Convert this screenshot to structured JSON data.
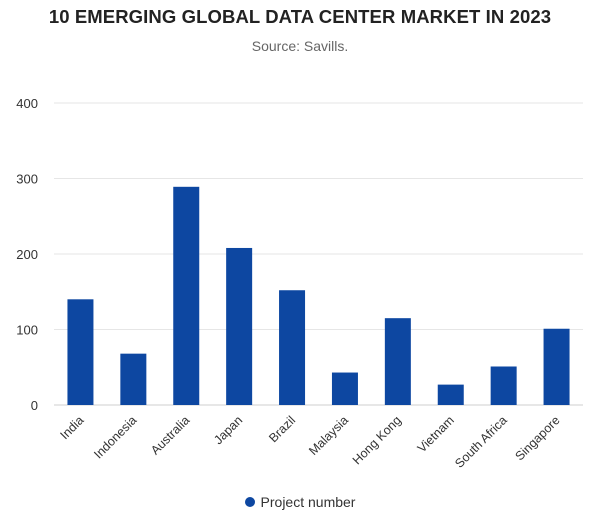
{
  "chart_data": {
    "type": "bar",
    "title": "10 EMERGING GLOBAL DATA CENTER MARKET IN 2023",
    "subtitle": "Source: Savills.",
    "xlabel": "",
    "ylabel": "",
    "ylim": [
      0,
      400
    ],
    "yticks": [
      0,
      100,
      200,
      300,
      400
    ],
    "grid": true,
    "legend_position": "bottom",
    "categories": [
      "India",
      "Indonesia",
      "Australia",
      "Japan",
      "Brazil",
      "Malaysia",
      "Hong Kong",
      "Vietnam",
      "South Africa",
      "Singapore"
    ],
    "series": [
      {
        "name": "Project number",
        "color": "#0d47a1",
        "values": [
          140,
          68,
          289,
          208,
          152,
          43,
          115,
          27,
          51,
          101
        ]
      }
    ]
  }
}
